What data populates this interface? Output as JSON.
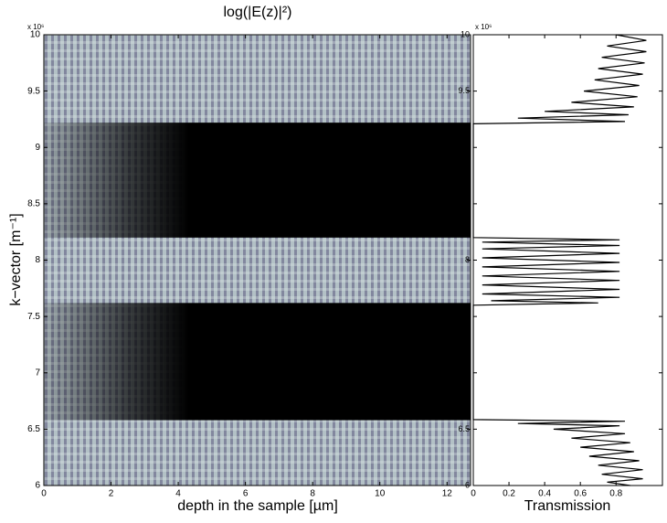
{
  "chart_data": [
    {
      "type": "heatmap",
      "title": "log(|E(z)|²)",
      "x_label": "depth in the sample [µm]",
      "y_label": "k−vector [m⁻¹]",
      "y_multiplier": "x 10⁶",
      "xlim": [
        0,
        12.7
      ],
      "xticks": [
        0,
        2,
        4,
        6,
        8,
        10,
        12
      ],
      "ylim": [
        6000000,
        10000000
      ],
      "yticks": [
        {
          "value": 6000000,
          "label": "6"
        },
        {
          "value": 6500000,
          "label": "6.5"
        },
        {
          "value": 7000000,
          "label": "7"
        },
        {
          "value": 7500000,
          "label": "7.5"
        },
        {
          "value": 8000000,
          "label": "8"
        },
        {
          "value": 8500000,
          "label": "8.5"
        },
        {
          "value": 9000000,
          "label": "9"
        },
        {
          "value": 9500000,
          "label": "9.5"
        },
        {
          "value": 10000000,
          "label": "10"
        }
      ],
      "stop_bands": [
        {
          "from": 6580000,
          "to": 7620000
        },
        {
          "from": 8200000,
          "to": 9220000
        }
      ]
    },
    {
      "type": "line",
      "x_label": "Transmission",
      "y_multiplier": "x 10⁶",
      "color": "#000000",
      "xlim": [
        0,
        1.06
      ],
      "xticks": [
        0,
        0.2,
        0.4,
        0.6,
        0.8
      ],
      "ylim": [
        6000000,
        10000000
      ],
      "yticks": [
        {
          "value": 6000000,
          "label": "6"
        },
        {
          "value": 6500000,
          "label": "6.5"
        },
        {
          "value": 7000000,
          "label": ""
        },
        {
          "value": 7500000,
          "label": ""
        },
        {
          "value": 8000000,
          "label": "8"
        },
        {
          "value": 8500000,
          "label": ""
        },
        {
          "value": 9000000,
          "label": ""
        },
        {
          "value": 9500000,
          "label": "9.5"
        },
        {
          "value": 10000000,
          "label": "10"
        }
      ],
      "k": [
        6000000,
        6030000,
        6060000,
        6100000,
        6140000,
        6180000,
        6220000,
        6260000,
        6300000,
        6340000,
        6380000,
        6420000,
        6460000,
        6500000,
        6530000,
        6550000,
        6570000,
        6585000,
        7600000,
        7620000,
        7640000,
        7670000,
        7700000,
        7740000,
        7780000,
        7820000,
        7860000,
        7900000,
        7940000,
        7980000,
        8020000,
        8060000,
        8100000,
        8130000,
        8160000,
        8180000,
        8200000,
        9210000,
        9230000,
        9260000,
        9290000,
        9320000,
        9360000,
        9400000,
        9450000,
        9500000,
        9550000,
        9600000,
        9650000,
        9700000,
        9750000,
        9800000,
        9850000,
        9900000,
        9950000,
        10000000
      ],
      "values": [
        0.88,
        0.75,
        0.95,
        0.72,
        0.95,
        0.7,
        0.93,
        0.65,
        0.9,
        0.6,
        0.88,
        0.55,
        0.85,
        0.45,
        0.82,
        0.25,
        0.85,
        0,
        0,
        0.7,
        0.1,
        0.82,
        0.05,
        0.82,
        0.05,
        0.82,
        0.05,
        0.82,
        0.05,
        0.82,
        0.05,
        0.82,
        0.05,
        0.82,
        0.05,
        0.82,
        0,
        0,
        0.85,
        0.25,
        0.87,
        0.4,
        0.9,
        0.55,
        0.92,
        0.62,
        0.93,
        0.68,
        0.95,
        0.7,
        0.96,
        0.72,
        0.97,
        0.75,
        0.97,
        0.8
      ]
    }
  ]
}
